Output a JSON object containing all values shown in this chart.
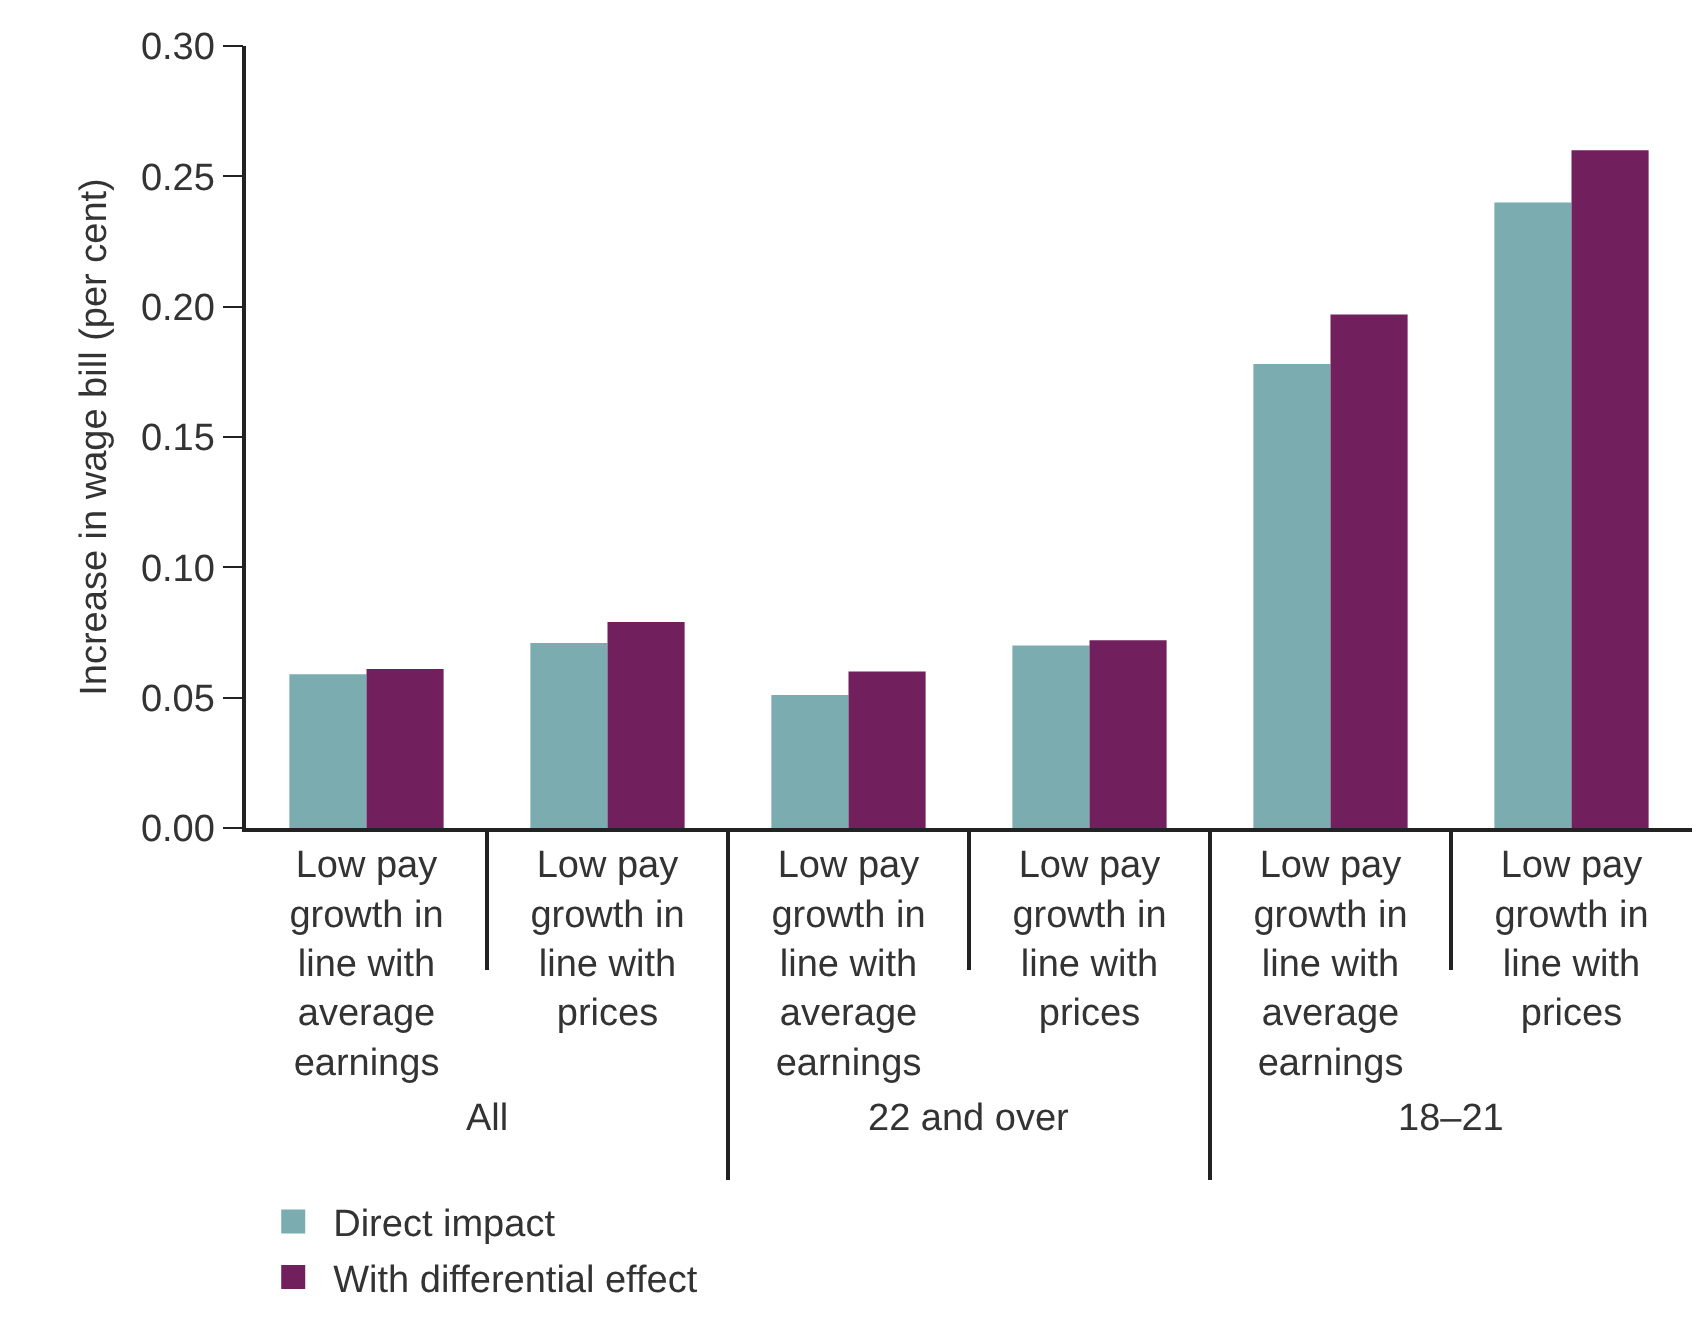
{
  "chart_data": {
    "type": "bar",
    "ylabel": "Increase in wage bill (per cent)",
    "categories": [
      "Low pay growth in line with average earnings",
      "Low pay growth in line with prices",
      "Low pay growth in line with average earnings",
      "Low pay growth in line with prices",
      "Low pay growth in line with average earnings",
      "Low pay growth in line with prices"
    ],
    "series": [
      {
        "name": "Direct impact",
        "color": "#7aacb0",
        "values": [
          0.059,
          0.071,
          0.051,
          0.07,
          0.178,
          0.24
        ]
      },
      {
        "name": "With differential effect",
        "color": "#721f5e",
        "values": [
          0.061,
          0.079,
          0.06,
          0.072,
          0.197,
          0.26
        ]
      }
    ],
    "annotations": [
      "All",
      "22 and over",
      "18–21"
    ],
    "ylim": [
      0,
      0.3
    ],
    "yticks": [
      {
        "value": 0,
        "label": "0.00"
      },
      {
        "value": 0.05,
        "label": "0.05"
      },
      {
        "value": 0.1,
        "label": "0.10"
      },
      {
        "value": 0.15,
        "label": "0.15"
      },
      {
        "value": 0.2,
        "label": "0.20"
      },
      {
        "value": 0.25,
        "label": "0.25"
      },
      {
        "value": 0.3,
        "label": "0.30"
      }
    ],
    "grid": false,
    "legend": "bottom"
  }
}
